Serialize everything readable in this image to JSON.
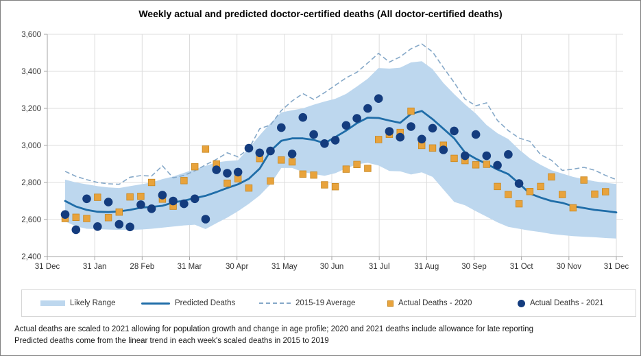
{
  "title": "Weekly actual and predicted doctor-certified deaths (All doctor-certified deaths)",
  "footnotes": [
    "Actual deaths are scaled to 2021 allowing for population growth and change in age profile; 2020 and 2021 deaths include allowance for late reporting",
    "Predicted deaths come from the linear trend in each week's scaled deaths in 2015 to 2019"
  ],
  "legend": [
    {
      "label": "Likely Range",
      "type": "band"
    },
    {
      "label": "Predicted Deaths",
      "type": "line"
    },
    {
      "label": "2015-19 Average",
      "type": "dashed-line"
    },
    {
      "label": "Actual Deaths - 2020",
      "type": "square-marker"
    },
    {
      "label": "Actual Deaths - 2021",
      "type": "circle-marker"
    }
  ],
  "colors": {
    "band": "#BDD7EE",
    "predicted": "#1F6DA8",
    "average": "#85A8C8",
    "actual_2020": "#E8A33C",
    "actual_2020_edge": "#c8871f",
    "actual_2021": "#143C7E",
    "gridline": "#DCDCDC",
    "axis": "#A6A6A6",
    "tick_text": "#333333"
  },
  "y_axis": {
    "tick_values": [
      2400,
      2600,
      2800,
      3000,
      3200,
      3400,
      3600
    ],
    "tick_labels": [
      "2,400",
      "2,600",
      "2,800",
      "3,000",
      "3,200",
      "3,400",
      "3,600"
    ]
  },
  "x_axis": {
    "labels": [
      "31 Dec",
      "31 Jan",
      "28 Feb",
      "31 Mar",
      "30 Apr",
      "31 May",
      "30 Jun",
      "31 Jul",
      "31 Aug",
      "30 Sep",
      "31 Oct",
      "30 Nov",
      "31 Dec"
    ]
  },
  "chart_data": {
    "type": "line",
    "title": "Weekly actual and predicted doctor-certified deaths (All doctor-certified deaths)",
    "x_unit": "week of year (52 weekly points, Jan to Dec)",
    "ylim": [
      2400,
      3600
    ],
    "grid": true,
    "legend_position": "bottom",
    "series": [
      {
        "name": "Likely Range Upper",
        "role": "band_upper",
        "values": [
          2815,
          2800,
          2790,
          2780,
          2773,
          2770,
          2780,
          2790,
          2800,
          2818,
          2832,
          2852,
          2872,
          2890,
          2908,
          2916,
          2920,
          2985,
          3055,
          3120,
          3178,
          3190,
          3200,
          3220,
          3237,
          3252,
          3278,
          3318,
          3360,
          3418,
          3415,
          3420,
          3448,
          3455,
          3412,
          3337,
          3277,
          3222,
          3172,
          3110,
          3066,
          3034,
          2978,
          2930,
          2895,
          2866,
          2848,
          2830,
          2818,
          2806,
          2798,
          2792
        ]
      },
      {
        "name": "Likely Range Lower",
        "role": "band_lower",
        "values": [
          2590,
          2563,
          2550,
          2548,
          2546,
          2544,
          2544,
          2546,
          2550,
          2556,
          2562,
          2568,
          2572,
          2548,
          2580,
          2610,
          2645,
          2685,
          2730,
          2790,
          2878,
          2878,
          2857,
          2845,
          2836,
          2850,
          2876,
          2898,
          2906,
          2892,
          2862,
          2860,
          2843,
          2855,
          2830,
          2762,
          2695,
          2677,
          2645,
          2615,
          2585,
          2560,
          2550,
          2540,
          2532,
          2522,
          2516,
          2510,
          2507,
          2504,
          2500,
          2497
        ]
      },
      {
        "name": "Predicted Deaths",
        "role": "line",
        "values": [
          2700,
          2670,
          2652,
          2642,
          2640,
          2644,
          2652,
          2664,
          2668,
          2674,
          2692,
          2702,
          2715,
          2728,
          2748,
          2770,
          2790,
          2820,
          2875,
          2970,
          3025,
          3038,
          3038,
          3030,
          3012,
          3045,
          3080,
          3120,
          3150,
          3148,
          3134,
          3122,
          3170,
          3186,
          3142,
          3090,
          3038,
          2962,
          2928,
          2900,
          2870,
          2845,
          2795,
          2740,
          2718,
          2700,
          2690,
          2672,
          2662,
          2652,
          2646,
          2638
        ]
      },
      {
        "name": "2015-19 Average",
        "role": "dashed-line",
        "values": [
          2860,
          2833,
          2815,
          2800,
          2793,
          2790,
          2828,
          2837,
          2835,
          2890,
          2825,
          2838,
          2863,
          2895,
          2925,
          2960,
          2938,
          2982,
          3090,
          3110,
          3188,
          3240,
          3280,
          3248,
          3285,
          3325,
          3365,
          3395,
          3445,
          3497,
          3450,
          3478,
          3522,
          3548,
          3505,
          3420,
          3340,
          3250,
          3214,
          3230,
          3135,
          3080,
          3040,
          3022,
          2950,
          2920,
          2865,
          2872,
          2882,
          2866,
          2838,
          2815
        ]
      },
      {
        "name": "Actual Deaths - 2020",
        "role": "square-markers",
        "values": [
          2605,
          2612,
          2605,
          2720,
          2610,
          2640,
          2722,
          2725,
          2800,
          2710,
          2672,
          2810,
          2885,
          2980,
          2900,
          2796,
          2820,
          2770,
          2929,
          2808,
          2921,
          2911,
          2845,
          2840,
          2787,
          2777,
          2872,
          2897,
          2876,
          3032,
          3060,
          3070,
          3185,
          3000,
          2986,
          3001,
          2930,
          2918,
          2895,
          2898,
          2778,
          2735,
          2685,
          2751,
          2778,
          2830,
          2735,
          2663,
          2813,
          2737,
          2750,
          null
        ]
      },
      {
        "name": "Actual Deaths - 2021",
        "role": "circle-markers",
        "values": [
          2627,
          2545,
          2712,
          2562,
          2694,
          2574,
          2560,
          2680,
          2658,
          2732,
          2700,
          2685,
          2712,
          2602,
          2868,
          2850,
          2856,
          2985,
          2960,
          2970,
          3096,
          2954,
          3151,
          3059,
          3010,
          3028,
          3108,
          3146,
          3200,
          3253,
          3076,
          3044,
          3102,
          3034,
          3093,
          2976,
          3078,
          2944,
          3059,
          2944,
          2893,
          2951,
          2794,
          null,
          null,
          null,
          null,
          null,
          null,
          null,
          null,
          null
        ]
      }
    ]
  }
}
